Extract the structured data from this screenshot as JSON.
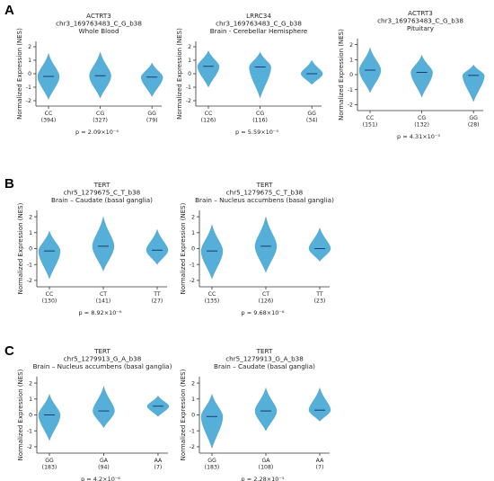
{
  "panel_labels": [
    "A",
    "B",
    "C"
  ],
  "chart_data": [
    {
      "type": "violin",
      "panel": "A",
      "title": [
        "ACTRT3",
        "chr3_169763483_C_G_b38",
        "Whole Blood"
      ],
      "ylabel": "Normalized Expression (NES)",
      "ylim": [
        -2.4,
        2.4
      ],
      "yticks": [
        -2,
        -1,
        0,
        1,
        2
      ],
      "categories": [
        {
          "label": "CC",
          "n": "(394)",
          "min": -1.9,
          "max": 1.5,
          "median": -0.2
        },
        {
          "label": "CG",
          "n": "(327)",
          "min": -1.8,
          "max": 1.6,
          "median": -0.15
        },
        {
          "label": "GG",
          "n": "(79)",
          "min": -1.7,
          "max": 0.8,
          "median": -0.25
        }
      ],
      "pvalue": "p = 2.09×10⁻⁴"
    },
    {
      "type": "violin",
      "panel": "A",
      "title": [
        "LRRC34",
        "chr3_169763483_C_G_b38",
        "Brain - Cerebellar Hemisphere"
      ],
      "ylabel": "Normalized Expression (NES)",
      "ylim": [
        -2.4,
        2.4
      ],
      "yticks": [
        -2,
        -1,
        0,
        1,
        2
      ],
      "categories": [
        {
          "label": "CC",
          "n": "(126)",
          "min": -1.0,
          "max": 1.7,
          "median": 0.55
        },
        {
          "label": "CG",
          "n": "(116)",
          "min": -1.8,
          "max": 1.6,
          "median": 0.5
        },
        {
          "label": "GG",
          "n": "(34)",
          "min": -0.8,
          "max": 1.0,
          "median": 0.0
        }
      ],
      "pvalue": "p = 5.59×10⁻⁵"
    },
    {
      "type": "violin",
      "panel": "A",
      "title": [
        "ACTRT3",
        "chr3_169763483_C_G_b38",
        "Pituitary"
      ],
      "ylabel": "Normalized Expression (NES)",
      "ylim": [
        -2.4,
        2.4
      ],
      "yticks": [
        -2,
        -1,
        0,
        1,
        2
      ],
      "categories": [
        {
          "label": "CC",
          "n": "(151)",
          "min": -1.2,
          "max": 1.8,
          "median": 0.3
        },
        {
          "label": "CG",
          "n": "(132)",
          "min": -1.5,
          "max": 1.3,
          "median": 0.15
        },
        {
          "label": "GG",
          "n": "(28)",
          "min": -1.8,
          "max": 0.65,
          "median": -0.05
        }
      ],
      "pvalue": "p = 4.31×10⁻⁵"
    },
    {
      "type": "violin",
      "panel": "B",
      "title": [
        "TERT",
        "chr5_1279675_C_T_b38",
        "Brain – Caudate (basal ganglia)"
      ],
      "ylabel": "Normalized Expression (NES)",
      "ylim": [
        -2.4,
        2.4
      ],
      "yticks": [
        -2,
        -1,
        0,
        1,
        2
      ],
      "categories": [
        {
          "label": "CC",
          "n": "(130)",
          "min": -1.9,
          "max": 1.1,
          "median": -0.15
        },
        {
          "label": "CT",
          "n": "(141)",
          "min": -1.4,
          "max": 2.0,
          "median": 0.15
        },
        {
          "label": "TT",
          "n": "(27)",
          "min": -1.0,
          "max": 1.2,
          "median": -0.1
        }
      ],
      "pvalue": "p = 8.92×10⁻⁶"
    },
    {
      "type": "violin",
      "panel": "B",
      "title": [
        "TERT",
        "chr5_1279675_C_T_b38",
        "Brain – Nucleus accumbens (basal ganglia)"
      ],
      "ylabel": "Normalized Expression (NES)",
      "ylim": [
        -2.4,
        2.4
      ],
      "yticks": [
        -2,
        -1,
        0,
        1,
        2
      ],
      "categories": [
        {
          "label": "CC",
          "n": "(135)",
          "min": -1.9,
          "max": 1.5,
          "median": -0.15
        },
        {
          "label": "CT",
          "n": "(126)",
          "min": -1.5,
          "max": 2.0,
          "median": 0.15
        },
        {
          "label": "TT",
          "n": "(23)",
          "min": -0.8,
          "max": 1.3,
          "median": 0.0
        }
      ],
      "pvalue": "p = 9.68×10⁻⁶"
    },
    {
      "type": "violin",
      "panel": "C",
      "title": [
        "TERT",
        "chr5_1279913_G_A_b38",
        "Brain – Nucleus accumbens (basal ganglia)"
      ],
      "ylabel": "Normalized Expression (NES)",
      "ylim": [
        -2.4,
        2.4
      ],
      "yticks": [
        -2,
        -1,
        0,
        1,
        2
      ],
      "categories": [
        {
          "label": "GG",
          "n": "(183)",
          "min": -1.6,
          "max": 1.3,
          "median": 0.0
        },
        {
          "label": "GA",
          "n": "(94)",
          "min": -0.8,
          "max": 1.8,
          "median": 0.25
        },
        {
          "label": "AA",
          "n": "(7)",
          "min": -0.1,
          "max": 1.2,
          "median": 0.55
        }
      ],
      "pvalue": "p = 4.2×10⁻⁶"
    },
    {
      "type": "violin",
      "panel": "C",
      "title": [
        "TERT",
        "chr5_1279913_G_A_b38",
        "Brain – Caudate (basal ganglia)"
      ],
      "ylabel": "Normalized Expression (NES)",
      "ylim": [
        -2.4,
        2.4
      ],
      "yticks": [
        -2,
        -1,
        0,
        1,
        2
      ],
      "categories": [
        {
          "label": "GG",
          "n": "(183)",
          "min": -2.1,
          "max": 1.3,
          "median": -0.1
        },
        {
          "label": "GA",
          "n": "(108)",
          "min": -1.0,
          "max": 1.7,
          "median": 0.25
        },
        {
          "label": "AA",
          "n": "(7)",
          "min": -0.4,
          "max": 1.7,
          "median": 0.3
        }
      ],
      "pvalue": "p = 2.28×10⁻⁵"
    }
  ],
  "colors": {
    "violin": "#56afd8",
    "median": "#1a3a6b",
    "axis": "#333333"
  }
}
